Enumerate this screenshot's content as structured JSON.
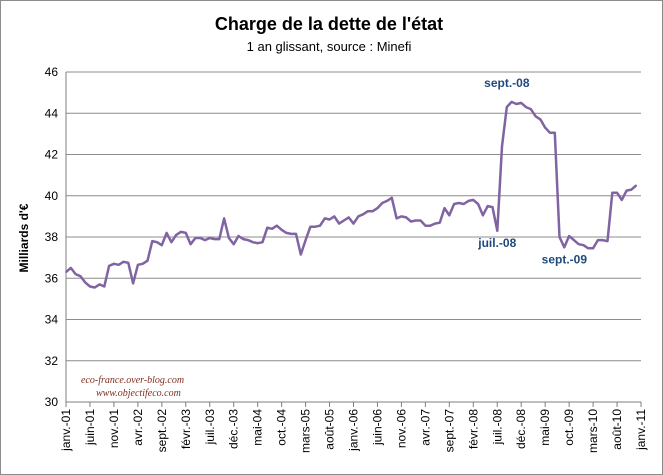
{
  "chart_data": {
    "type": "line",
    "title": "Charge de la dette de l'état",
    "subtitle": "1 an glissant, source : Minefi",
    "ylabel": "Milliards d'€",
    "xlabel": "",
    "ylim": [
      30,
      46
    ],
    "yticks": [
      30,
      32,
      34,
      36,
      38,
      40,
      42,
      44,
      46
    ],
    "grid": true,
    "line_color": "#8064a2",
    "annotation_color": "#1f497d",
    "x_start": "2001-01",
    "x_end": "2011-01",
    "x_ticks": [
      {
        "label": "janv.-01",
        "x": "2001-01"
      },
      {
        "label": "juin-01",
        "x": "2001-06"
      },
      {
        "label": "nov.-01",
        "x": "2001-11"
      },
      {
        "label": "avr.-02",
        "x": "2002-04"
      },
      {
        "label": "sept.-02",
        "x": "2002-09"
      },
      {
        "label": "févr.-03",
        "x": "2003-02"
      },
      {
        "label": "juil.-03",
        "x": "2003-07"
      },
      {
        "label": "déc.-03",
        "x": "2003-12"
      },
      {
        "label": "mai-04",
        "x": "2004-05"
      },
      {
        "label": "oct.-04",
        "x": "2004-10"
      },
      {
        "label": "mars-05",
        "x": "2005-03"
      },
      {
        "label": "août-05",
        "x": "2005-08"
      },
      {
        "label": "janv.-06",
        "x": "2006-01"
      },
      {
        "label": "juin-06",
        "x": "2006-06"
      },
      {
        "label": "nov.-06",
        "x": "2006-11"
      },
      {
        "label": "avr.-07",
        "x": "2007-04"
      },
      {
        "label": "sept.-07",
        "x": "2007-09"
      },
      {
        "label": "févr.-08",
        "x": "2008-02"
      },
      {
        "label": "juil.-08",
        "x": "2008-07"
      },
      {
        "label": "déc.-08",
        "x": "2008-12"
      },
      {
        "label": "mai-09",
        "x": "2009-05"
      },
      {
        "label": "oct.-09",
        "x": "2009-10"
      },
      {
        "label": "mars-10",
        "x": "2010-03"
      },
      {
        "label": "août-10",
        "x": "2010-08"
      },
      {
        "label": "janv.-11",
        "x": "2011-01"
      }
    ],
    "series": [
      {
        "points": [
          {
            "x": "2001-01",
            "y": 36.3
          },
          {
            "x": "2001-02",
            "y": 36.5
          },
          {
            "x": "2001-03",
            "y": 36.2
          },
          {
            "x": "2001-04",
            "y": 36.1
          },
          {
            "x": "2001-05",
            "y": 35.8
          },
          {
            "x": "2001-06",
            "y": 35.6
          },
          {
            "x": "2001-07",
            "y": 35.55
          },
          {
            "x": "2001-08",
            "y": 35.7
          },
          {
            "x": "2001-09",
            "y": 35.6
          },
          {
            "x": "2001-10",
            "y": 36.6
          },
          {
            "x": "2001-11",
            "y": 36.7
          },
          {
            "x": "2001-12",
            "y": 36.65
          },
          {
            "x": "2002-01",
            "y": 36.8
          },
          {
            "x": "2002-02",
            "y": 36.75
          },
          {
            "x": "2002-03",
            "y": 35.75
          },
          {
            "x": "2002-04",
            "y": 36.65
          },
          {
            "x": "2002-05",
            "y": 36.7
          },
          {
            "x": "2002-06",
            "y": 36.85
          },
          {
            "x": "2002-07",
            "y": 37.8
          },
          {
            "x": "2002-08",
            "y": 37.75
          },
          {
            "x": "2002-09",
            "y": 37.6
          },
          {
            "x": "2002-10",
            "y": 38.2
          },
          {
            "x": "2002-11",
            "y": 37.75
          },
          {
            "x": "2002-12",
            "y": 38.1
          },
          {
            "x": "2003-01",
            "y": 38.25
          },
          {
            "x": "2003-02",
            "y": 38.2
          },
          {
            "x": "2003-03",
            "y": 37.65
          },
          {
            "x": "2003-04",
            "y": 37.95
          },
          {
            "x": "2003-05",
            "y": 37.95
          },
          {
            "x": "2003-06",
            "y": 37.85
          },
          {
            "x": "2003-07",
            "y": 37.95
          },
          {
            "x": "2003-08",
            "y": 37.9
          },
          {
            "x": "2003-09",
            "y": 37.9
          },
          {
            "x": "2003-10",
            "y": 38.9
          },
          {
            "x": "2003-11",
            "y": 37.95
          },
          {
            "x": "2003-12",
            "y": 37.65
          },
          {
            "x": "2004-01",
            "y": 38.05
          },
          {
            "x": "2004-02",
            "y": 37.9
          },
          {
            "x": "2004-03",
            "y": 37.85
          },
          {
            "x": "2004-04",
            "y": 37.75
          },
          {
            "x": "2004-05",
            "y": 37.7
          },
          {
            "x": "2004-06",
            "y": 37.75
          },
          {
            "x": "2004-07",
            "y": 38.45
          },
          {
            "x": "2004-08",
            "y": 38.4
          },
          {
            "x": "2004-09",
            "y": 38.55
          },
          {
            "x": "2004-10",
            "y": 38.35
          },
          {
            "x": "2004-11",
            "y": 38.2
          },
          {
            "x": "2004-12",
            "y": 38.15
          },
          {
            "x": "2005-01",
            "y": 38.15
          },
          {
            "x": "2005-02",
            "y": 37.15
          },
          {
            "x": "2005-03",
            "y": 37.85
          },
          {
            "x": "2005-04",
            "y": 38.5
          },
          {
            "x": "2005-05",
            "y": 38.5
          },
          {
            "x": "2005-06",
            "y": 38.55
          },
          {
            "x": "2005-07",
            "y": 38.9
          },
          {
            "x": "2005-08",
            "y": 38.85
          },
          {
            "x": "2005-09",
            "y": 39.0
          },
          {
            "x": "2005-10",
            "y": 38.65
          },
          {
            "x": "2005-11",
            "y": 38.8
          },
          {
            "x": "2005-12",
            "y": 38.95
          },
          {
            "x": "2006-01",
            "y": 38.65
          },
          {
            "x": "2006-02",
            "y": 39.0
          },
          {
            "x": "2006-03",
            "y": 39.1
          },
          {
            "x": "2006-04",
            "y": 39.25
          },
          {
            "x": "2006-05",
            "y": 39.25
          },
          {
            "x": "2006-06",
            "y": 39.4
          },
          {
            "x": "2006-07",
            "y": 39.65
          },
          {
            "x": "2006-08",
            "y": 39.75
          },
          {
            "x": "2006-09",
            "y": 39.9
          },
          {
            "x": "2006-10",
            "y": 38.9
          },
          {
            "x": "2006-11",
            "y": 39.0
          },
          {
            "x": "2006-12",
            "y": 38.95
          },
          {
            "x": "2007-01",
            "y": 38.75
          },
          {
            "x": "2007-02",
            "y": 38.8
          },
          {
            "x": "2007-03",
            "y": 38.8
          },
          {
            "x": "2007-04",
            "y": 38.55
          },
          {
            "x": "2007-05",
            "y": 38.55
          },
          {
            "x": "2007-06",
            "y": 38.65
          },
          {
            "x": "2007-07",
            "y": 38.7
          },
          {
            "x": "2007-08",
            "y": 39.4
          },
          {
            "x": "2007-09",
            "y": 39.05
          },
          {
            "x": "2007-10",
            "y": 39.6
          },
          {
            "x": "2007-11",
            "y": 39.65
          },
          {
            "x": "2007-12",
            "y": 39.6
          },
          {
            "x": "2008-01",
            "y": 39.75
          },
          {
            "x": "2008-02",
            "y": 39.8
          },
          {
            "x": "2008-03",
            "y": 39.6
          },
          {
            "x": "2008-04",
            "y": 39.05
          },
          {
            "x": "2008-05",
            "y": 39.5
          },
          {
            "x": "2008-06",
            "y": 39.45
          },
          {
            "x": "2008-07",
            "y": 38.3
          },
          {
            "x": "2008-08",
            "y": 42.4
          },
          {
            "x": "2008-09",
            "y": 44.3
          },
          {
            "x": "2008-10",
            "y": 44.55
          },
          {
            "x": "2008-11",
            "y": 44.45
          },
          {
            "x": "2008-12",
            "y": 44.5
          },
          {
            "x": "2009-01",
            "y": 44.3
          },
          {
            "x": "2009-02",
            "y": 44.2
          },
          {
            "x": "2009-03",
            "y": 43.85
          },
          {
            "x": "2009-04",
            "y": 43.7
          },
          {
            "x": "2009-05",
            "y": 43.3
          },
          {
            "x": "2009-06",
            "y": 43.05
          },
          {
            "x": "2009-07",
            "y": 43.05
          },
          {
            "x": "2009-08",
            "y": 38.0
          },
          {
            "x": "2009-09",
            "y": 37.5
          },
          {
            "x": "2009-10",
            "y": 38.05
          },
          {
            "x": "2009-11",
            "y": 37.85
          },
          {
            "x": "2009-12",
            "y": 37.65
          },
          {
            "x": "2010-01",
            "y": 37.6
          },
          {
            "x": "2010-02",
            "y": 37.45
          },
          {
            "x": "2010-03",
            "y": 37.45
          },
          {
            "x": "2010-04",
            "y": 37.85
          },
          {
            "x": "2010-05",
            "y": 37.85
          },
          {
            "x": "2010-06",
            "y": 37.8
          },
          {
            "x": "2010-07",
            "y": 40.15
          },
          {
            "x": "2010-08",
            "y": 40.15
          },
          {
            "x": "2010-09",
            "y": 39.8
          },
          {
            "x": "2010-10",
            "y": 40.25
          },
          {
            "x": "2010-11",
            "y": 40.3
          },
          {
            "x": "2010-12",
            "y": 40.5
          }
        ]
      }
    ],
    "annotations": [
      {
        "text": "sept.-08",
        "x": "2008-09",
        "y": 44.3,
        "position": "above"
      },
      {
        "text": "juil.-08",
        "x": "2008-07",
        "y": 38.3,
        "position": "below"
      },
      {
        "text": "sept.-09",
        "x": "2009-09",
        "y": 37.5,
        "position": "below"
      }
    ],
    "credits": [
      "eco-france.over-blog.com",
      "www.objectifeco.com"
    ]
  }
}
